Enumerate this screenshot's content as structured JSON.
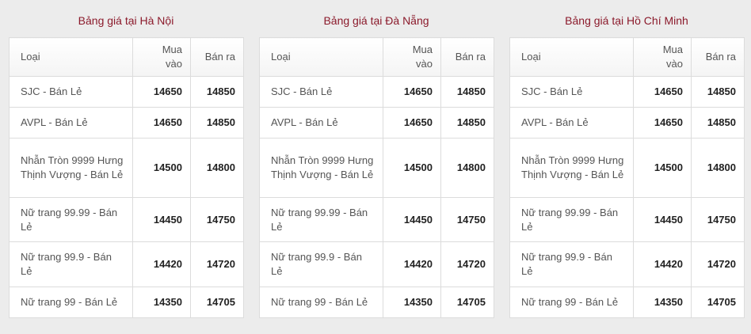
{
  "columns": {
    "type": "Loại",
    "buy": "Mua vào",
    "sell": "Bán ra"
  },
  "tables": [
    {
      "title": "Bảng giá tại Hà Nội",
      "rows": [
        {
          "type": "SJC - Bán Lẻ",
          "buy": "14650",
          "sell": "14850"
        },
        {
          "type": "AVPL - Bán Lẻ",
          "buy": "14650",
          "sell": "14850"
        },
        {
          "type": "Nhẫn Tròn 9999 Hưng Thịnh Vượng - Bán Lẻ",
          "buy": "14500",
          "sell": "14800"
        },
        {
          "type": "Nữ trang 99.99 - Bán Lẻ",
          "buy": "14450",
          "sell": "14750"
        },
        {
          "type": "Nữ trang 99.9 - Bán Lẻ",
          "buy": "14420",
          "sell": "14720"
        },
        {
          "type": "Nữ trang 99 - Bán Lẻ",
          "buy": "14350",
          "sell": "14705"
        }
      ]
    },
    {
      "title": "Bảng giá tại Đà Nẵng",
      "rows": [
        {
          "type": "SJC - Bán Lẻ",
          "buy": "14650",
          "sell": "14850"
        },
        {
          "type": "AVPL - Bán Lẻ",
          "buy": "14650",
          "sell": "14850"
        },
        {
          "type": "Nhẫn Tròn 9999 Hưng Thịnh Vượng - Bán Lẻ",
          "buy": "14500",
          "sell": "14800"
        },
        {
          "type": "Nữ trang 99.99 - Bán Lẻ",
          "buy": "14450",
          "sell": "14750"
        },
        {
          "type": "Nữ trang 99.9 - Bán Lẻ",
          "buy": "14420",
          "sell": "14720"
        },
        {
          "type": "Nữ trang 99 - Bán Lẻ",
          "buy": "14350",
          "sell": "14705"
        }
      ]
    },
    {
      "title": "Bảng giá tại Hồ Chí Minh",
      "rows": [
        {
          "type": "SJC - Bán Lẻ",
          "buy": "14650",
          "sell": "14850"
        },
        {
          "type": "AVPL - Bán Lẻ",
          "buy": "14650",
          "sell": "14850"
        },
        {
          "type": "Nhẫn Tròn 9999 Hưng Thịnh Vượng - Bán Lẻ",
          "buy": "14500",
          "sell": "14800"
        },
        {
          "type": "Nữ trang 99.99 - Bán Lẻ",
          "buy": "14450",
          "sell": "14750"
        },
        {
          "type": "Nữ trang 99.9 - Bán Lẻ",
          "buy": "14420",
          "sell": "14720"
        },
        {
          "type": "Nữ trang 99 - Bán Lẻ",
          "buy": "14350",
          "sell": "14705"
        }
      ]
    }
  ]
}
